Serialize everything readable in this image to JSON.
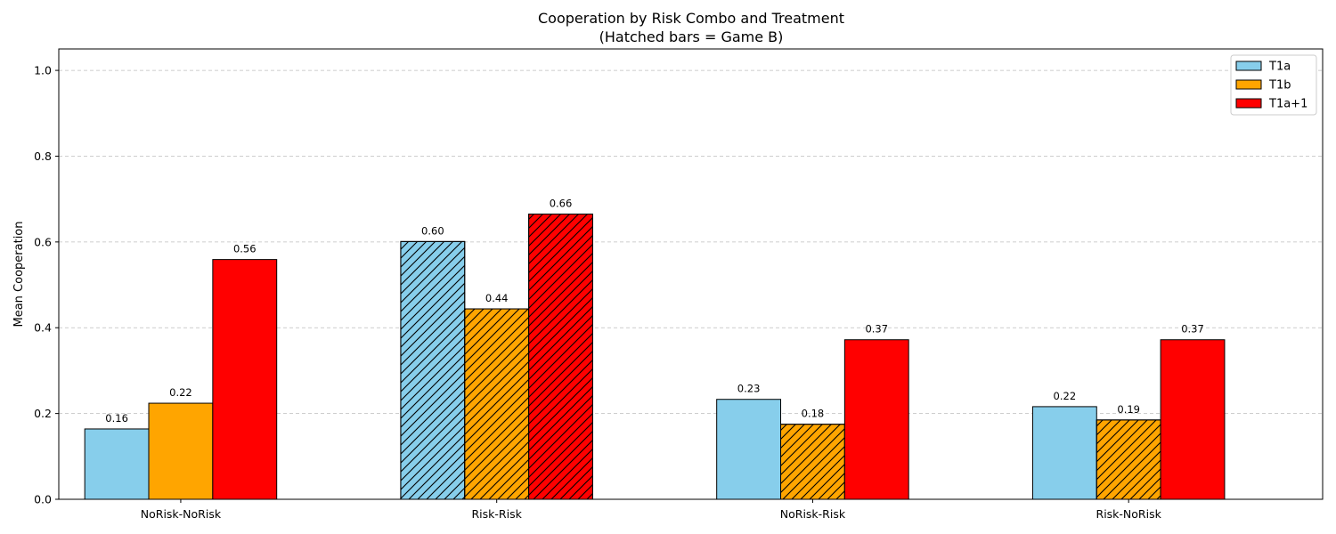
{
  "chart_data": {
    "type": "bar",
    "title": "Cooperation by Risk Combo and Treatment",
    "subtitle": "(Hatched bars = Game B)",
    "xlabel": "",
    "ylabel": "Mean Cooperation",
    "ylim": [
      0,
      1.05
    ],
    "yticks": [
      0.0,
      0.2,
      0.4,
      0.6,
      0.8,
      1.0
    ],
    "ytick_labels": [
      "0.0",
      "0.2",
      "0.4",
      "0.6",
      "0.8",
      "1.0"
    ],
    "grid": "y-dashed",
    "legend_position": "top-right",
    "categories": [
      "NoRisk-NoRisk",
      "Risk-Risk",
      "NoRisk-Risk",
      "Risk-NoRisk"
    ],
    "series": [
      {
        "name": "T1a",
        "color": "#87CEEB",
        "values": [
          0.164,
          0.601,
          0.233,
          0.216
        ],
        "labels": [
          "0.16",
          "0.60",
          "0.23",
          "0.22"
        ],
        "hatched": [
          false,
          true,
          false,
          false
        ]
      },
      {
        "name": "T1b",
        "color": "#FFA500",
        "values": [
          0.224,
          0.444,
          0.175,
          0.185
        ],
        "labels": [
          "0.22",
          "0.44",
          "0.18",
          "0.19"
        ],
        "hatched": [
          false,
          true,
          true,
          true
        ]
      },
      {
        "name": "T1a+1",
        "color": "#FF0000",
        "values": [
          0.559,
          0.665,
          0.372,
          0.372
        ],
        "labels": [
          "0.56",
          "0.66",
          "0.37",
          "0.37"
        ],
        "hatched": [
          false,
          true,
          false,
          false
        ]
      }
    ]
  }
}
